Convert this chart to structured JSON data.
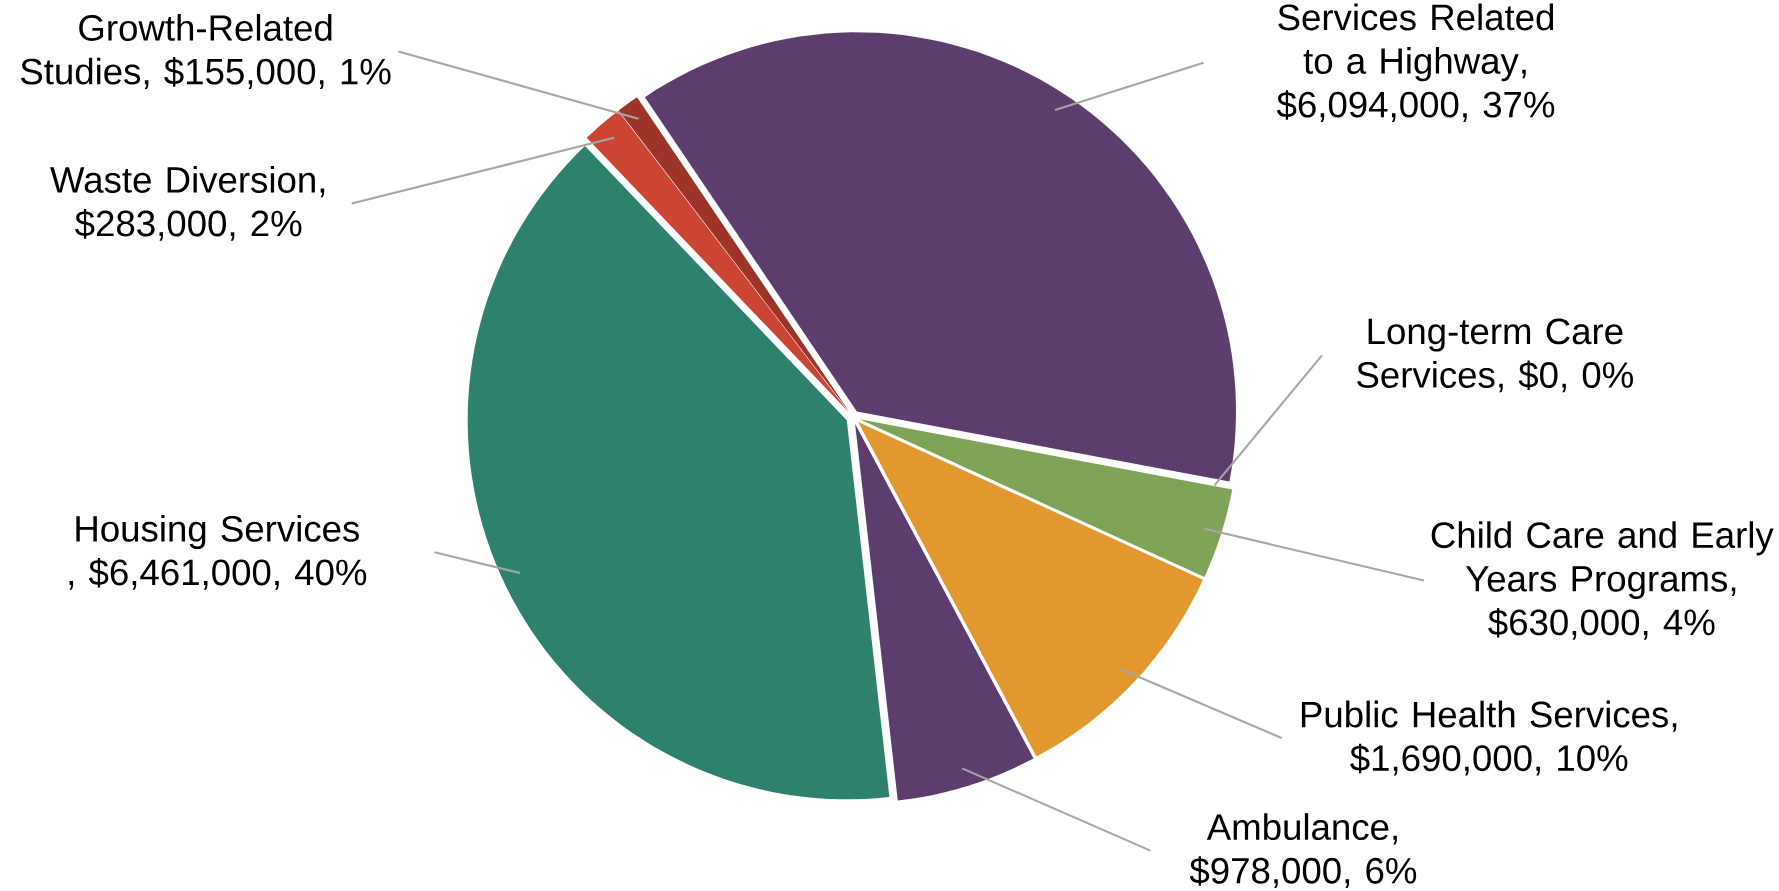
{
  "chart_data": {
    "type": "pie",
    "categories": [
      "Services Related to a Highway",
      "Long-term Care Services",
      "Child Care and Early Years Programs",
      "Public Health Services",
      "Ambulance",
      "Housing Services ",
      "Waste Diversion",
      "Growth-Related Studies"
    ],
    "values": [
      6094000,
      0,
      630000,
      1690000,
      978000,
      6461000,
      283000,
      155000
    ],
    "colors": [
      "#5c3d6e",
      "#6f8fc0",
      "#7fa356",
      "#e3982f",
      "#5c3d6e",
      "#2e826d",
      "#cc4433",
      "#9e3327"
    ],
    "value_labels": [
      ", $6,094,000, 37%",
      ", $0, 0%",
      ", $630,000, 4%",
      ", $1,690,000, 10%",
      ", $978,000, 6%",
      ", $6,461,000, 40%",
      ", $283,000, 2%",
      ", $155,000, 1%"
    ]
  }
}
